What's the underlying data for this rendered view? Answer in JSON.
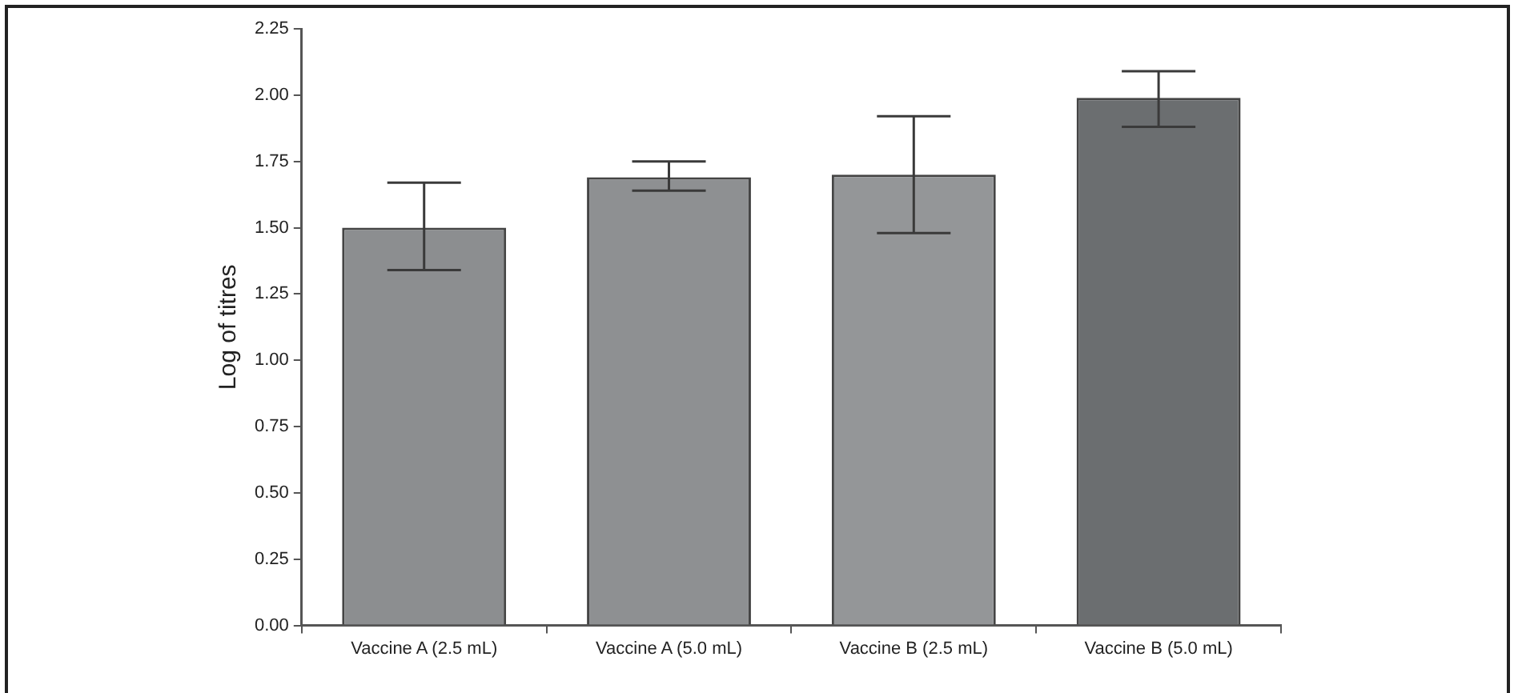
{
  "chart_data": {
    "type": "bar",
    "ylabel": "Log of titres",
    "categories": [
      "Vaccine A (2.5 mL)",
      "Vaccine A (5.0 mL)",
      "Vaccine B (2.5 mL)",
      "Vaccine B (5.0 mL)"
    ],
    "values": [
      1.5,
      1.69,
      1.7,
      1.99
    ],
    "colors": [
      "#8c8e90",
      "#8e9092",
      "#949698",
      "#6b6e70"
    ],
    "errors": [
      [
        1.34,
        1.67
      ],
      [
        1.64,
        1.75
      ],
      [
        1.48,
        1.92
      ],
      [
        1.88,
        2.09
      ]
    ],
    "ylim": [
      0,
      2.25
    ],
    "yticks": [
      {
        "value": 0,
        "label": "0.00"
      },
      {
        "value": 0.25,
        "label": "0.25"
      },
      {
        "value": 0.5,
        "label": "0.50"
      },
      {
        "value": 0.75,
        "label": "0.75"
      },
      {
        "value": 1,
        "label": "1.00"
      },
      {
        "value": 1.25,
        "label": "1.25"
      },
      {
        "value": 1.5,
        "label": "1.50"
      },
      {
        "value": 1.75,
        "label": "1.75"
      },
      {
        "value": 2,
        "label": "2.00"
      },
      {
        "value": 2.25,
        "label": "2.25"
      }
    ],
    "grid": false,
    "legend": false
  }
}
